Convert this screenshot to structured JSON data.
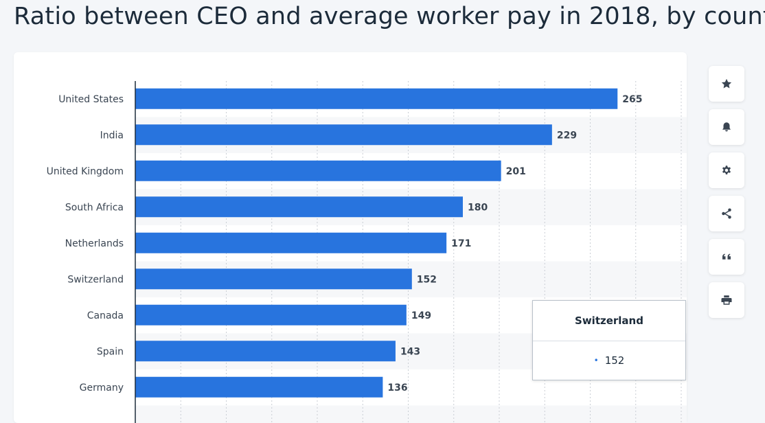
{
  "page": {
    "title": "Ratio between CEO and average worker pay in 2018, by count"
  },
  "chart_data": {
    "type": "bar",
    "orientation": "horizontal",
    "categories": [
      "United States",
      "India",
      "United Kingdom",
      "South Africa",
      "Netherlands",
      "Switzerland",
      "Canada",
      "Spain",
      "Germany"
    ],
    "values": [
      265,
      229,
      201,
      180,
      171,
      152,
      149,
      143,
      136
    ],
    "xlim": [
      0,
      300
    ],
    "grid": true,
    "bar_color": "#2874de"
  },
  "tooltip": {
    "category": "Switzerland",
    "value": "152",
    "dot": "•"
  },
  "toolbar": {
    "icons": [
      "star-icon",
      "bell-icon",
      "gear-icon",
      "share-icon",
      "quote-icon",
      "print-icon"
    ]
  }
}
